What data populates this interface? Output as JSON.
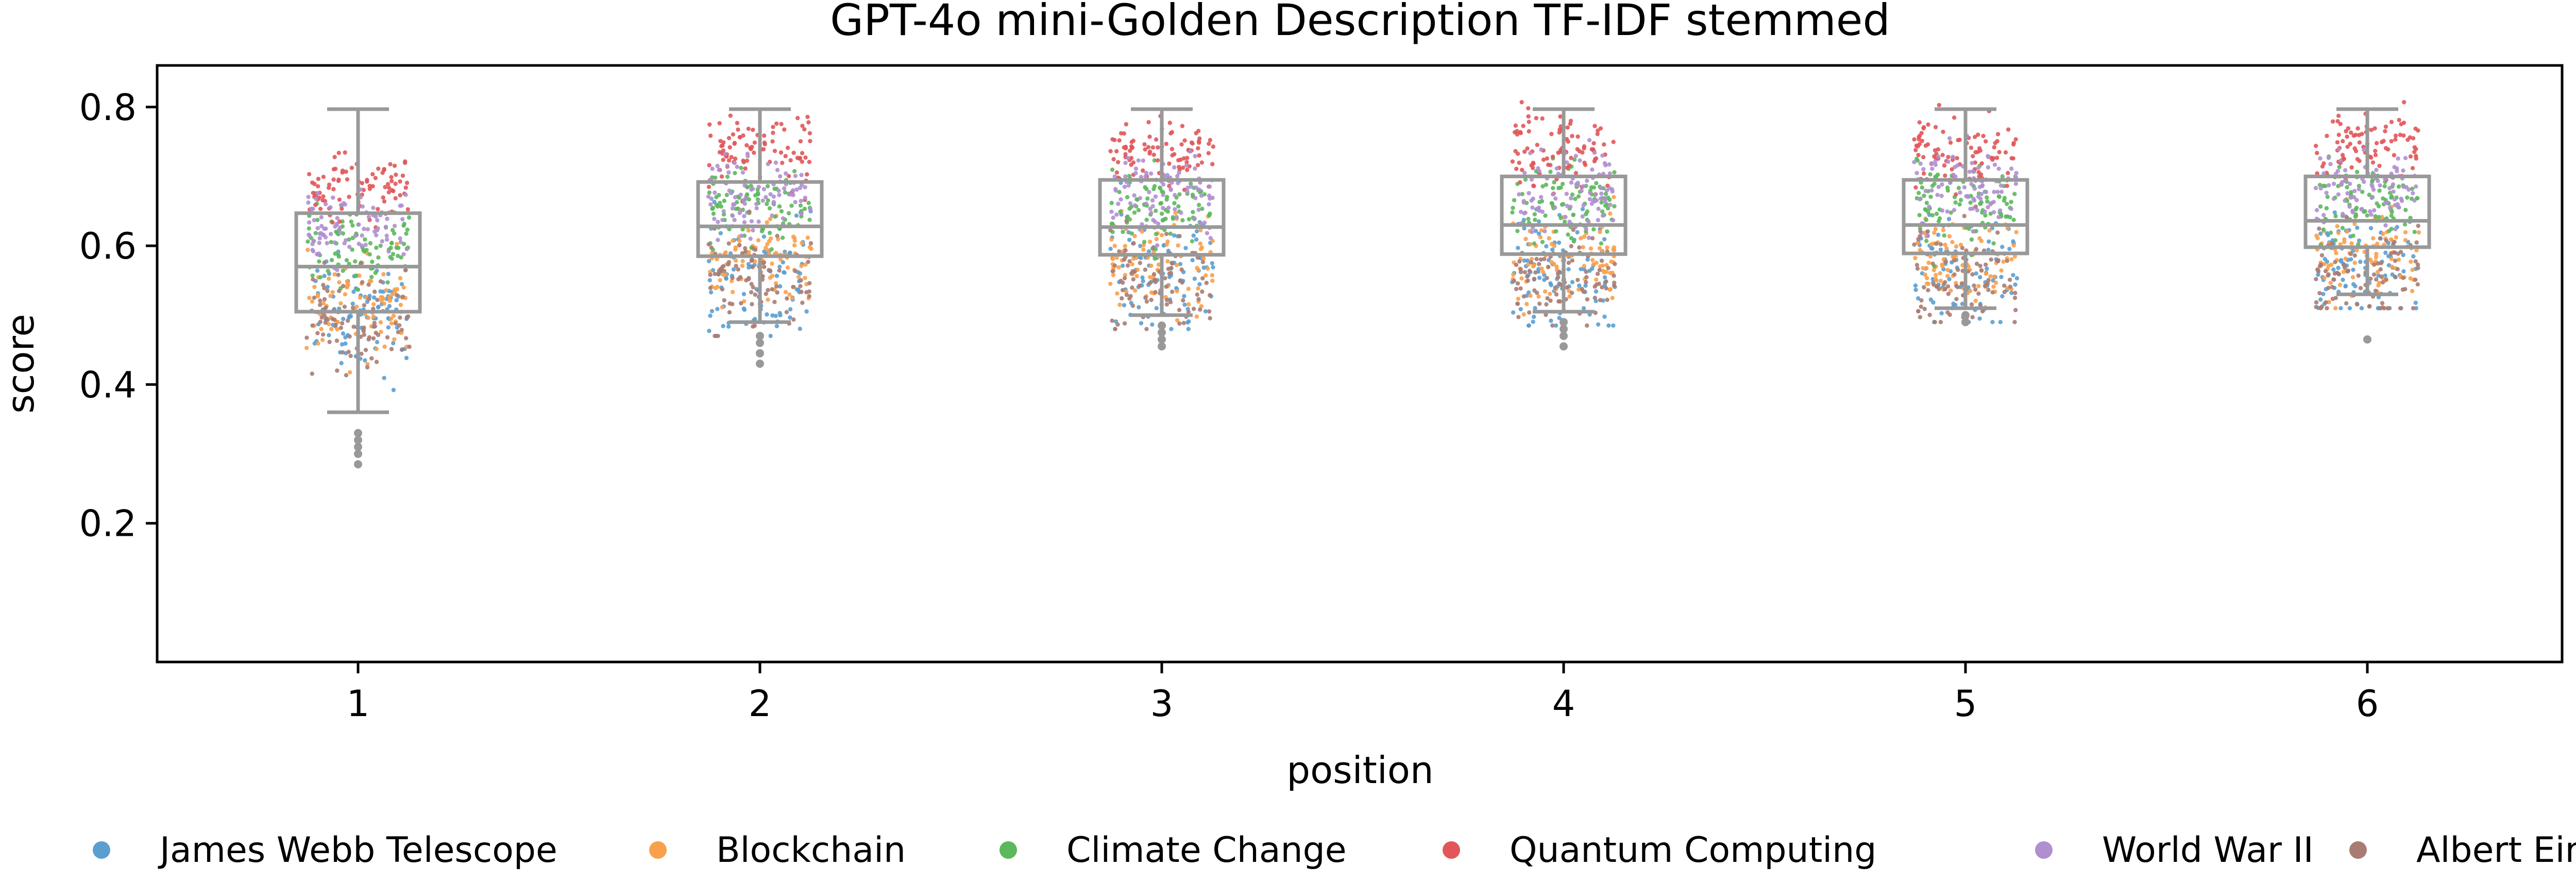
{
  "chart_data": {
    "type": "box+strip",
    "title": "GPT-4o mini-Golden Description TF-IDF stemmed",
    "xlabel": "position",
    "ylabel": "score",
    "categories": [
      "1",
      "2",
      "3",
      "4",
      "5",
      "6"
    ],
    "ylim": [
      0.0,
      0.86
    ],
    "yticks": [
      0.2,
      0.4,
      0.6,
      0.8
    ],
    "box_stats": [
      {
        "position": "1",
        "whisker_low": 0.36,
        "q1": 0.505,
        "median": 0.57,
        "q3": 0.647,
        "whisker_high": 0.797
      },
      {
        "position": "2",
        "whisker_low": 0.49,
        "q1": 0.585,
        "median": 0.628,
        "q3": 0.692,
        "whisker_high": 0.797
      },
      {
        "position": "3",
        "whisker_low": 0.5,
        "q1": 0.587,
        "median": 0.627,
        "q3": 0.695,
        "whisker_high": 0.797
      },
      {
        "position": "4",
        "whisker_low": 0.505,
        "q1": 0.588,
        "median": 0.63,
        "q3": 0.7,
        "whisker_high": 0.797
      },
      {
        "position": "5",
        "whisker_low": 0.51,
        "q1": 0.589,
        "median": 0.63,
        "q3": 0.695,
        "whisker_high": 0.797
      },
      {
        "position": "6",
        "whisker_low": 0.53,
        "q1": 0.598,
        "median": 0.636,
        "q3": 0.7,
        "whisker_high": 0.797
      }
    ],
    "outliers": [
      {
        "position": "1",
        "values": [
          0.285,
          0.3,
          0.31,
          0.32,
          0.33
        ]
      },
      {
        "position": "2",
        "values": [
          0.43,
          0.445,
          0.46,
          0.47
        ]
      },
      {
        "position": "3",
        "values": [
          0.455,
          0.465,
          0.475,
          0.485
        ]
      },
      {
        "position": "4",
        "values": [
          0.455,
          0.47,
          0.48,
          0.49
        ]
      },
      {
        "position": "5",
        "values": [
          0.49,
          0.5
        ]
      },
      {
        "position": "6",
        "values": [
          0.465
        ]
      }
    ],
    "series": [
      {
        "name": "James Webb Telescope",
        "color": "#5b9fd0",
        "center": 0.56,
        "spread": 0.06
      },
      {
        "name": "Blockchain",
        "color": "#f9a04b",
        "center": 0.58,
        "spread": 0.05
      },
      {
        "name": "Climate Change",
        "color": "#5cb85c",
        "center": 0.66,
        "spread": 0.04
      },
      {
        "name": "Quantum Computing",
        "color": "#e15759",
        "center": 0.74,
        "spread": 0.035
      },
      {
        "name": "World War II",
        "color": "#b08fd0",
        "center": 0.68,
        "spread": 0.04
      },
      {
        "name": "Albert Einstein",
        "color": "#a97c73",
        "center": 0.55,
        "spread": 0.05
      }
    ],
    "box_color": "#999999",
    "grid": false,
    "legend_position": "bottom"
  }
}
